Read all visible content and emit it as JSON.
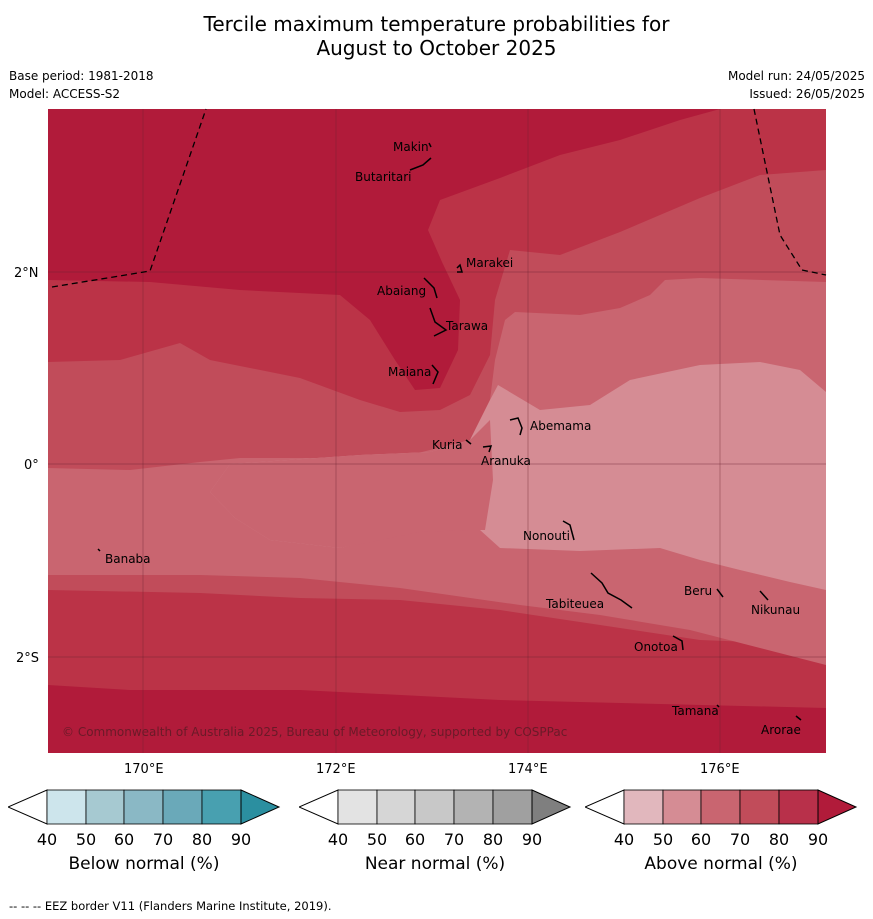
{
  "title": {
    "line1": "Tercile maximum temperature probabilities for",
    "line2": "August to October 2025"
  },
  "meta": {
    "base_period": "Base period: 1981-2018",
    "model": "Model: ACCESS-S2",
    "model_run": "Model run: 24/05/2025",
    "issued": "Issued: 26/05/2025"
  },
  "map": {
    "lat_labels": [
      "2°N",
      "0°",
      "2°S"
    ],
    "lon_labels": [
      "170°E",
      "172°E",
      "174°E",
      "176°E"
    ],
    "places": [
      "Makin",
      "Butaritari",
      "Marakei",
      "Abaiang",
      "Tarawa",
      "Maiana",
      "Abemama",
      "Kuria",
      "Aranuka",
      "Nonouti",
      "Banaba",
      "Beru",
      "Tabiteuea",
      "Nikunau",
      "Onotoa",
      "Tamana",
      "Arorae"
    ],
    "copyright": "© Commonwealth of Australia 2025, Bureau of Meteorology, supported by COSPPac",
    "shading_colors": {
      "above_90": "#b11b3a",
      "above_80": "#bb3347",
      "above_70": "#c14c5a",
      "above_60": "#c96570",
      "above_50": "#d58c94"
    }
  },
  "colorbars": [
    {
      "title": "Below normal (%)",
      "ticks": [
        "40",
        "50",
        "60",
        "70",
        "80",
        "90"
      ],
      "colors": [
        "#ffffff",
        "#cde5ec",
        "#a6c9d1",
        "#8ab8c5",
        "#6aa9b9",
        "#48a0b0",
        "#2b8fa0"
      ]
    },
    {
      "title": "Near normal (%)",
      "ticks": [
        "40",
        "50",
        "60",
        "70",
        "80",
        "90"
      ],
      "colors": [
        "#ffffff",
        "#e3e3e3",
        "#d6d6d6",
        "#c8c8c8",
        "#b3b3b3",
        "#a0a0a0",
        "#7f7f7f"
      ]
    },
    {
      "title": "Above normal (%)",
      "ticks": [
        "40",
        "50",
        "60",
        "70",
        "80",
        "90"
      ],
      "colors": [
        "#ffffff",
        "#e1b7bd",
        "#d58c94",
        "#c96570",
        "#c14c5a",
        "#b8304a",
        "#b11b3a"
      ]
    }
  ],
  "footer": "--  --  -- EEZ border V11 (Flanders Marine Institute, 2019)."
}
